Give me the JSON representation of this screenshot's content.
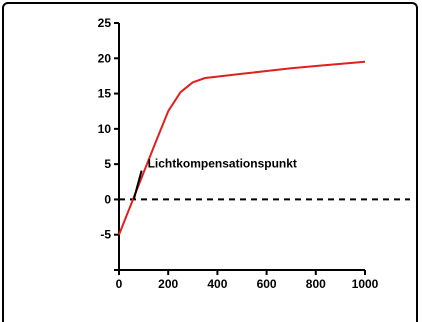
{
  "chart_data": {
    "type": "line",
    "title": "",
    "xlabel": "",
    "ylabel": "",
    "xlim": [
      0,
      1000
    ],
    "ylim": [
      -10,
      25
    ],
    "x_ticks": [
      0,
      200,
      400,
      600,
      800,
      1000
    ],
    "y_ticks": [
      -5,
      0,
      5,
      10,
      15,
      20,
      25
    ],
    "x_tick_labels": [
      "0",
      "200",
      "400",
      "600",
      "800",
      "1000"
    ],
    "y_tick_labels": [
      "-5",
      "0",
      "5",
      "10",
      "15",
      "20",
      "25"
    ],
    "series": [
      {
        "color": "#e02020",
        "x": [
          0,
          50,
          100,
          150,
          200,
          250,
          300,
          350,
          400,
          500,
          600,
          700,
          800,
          900,
          1000
        ],
        "y": [
          -5,
          -0.6,
          3.8,
          8.2,
          12.5,
          15.2,
          16.6,
          17.2,
          17.4,
          17.8,
          18.2,
          18.6,
          18.9,
          19.2,
          19.5
        ]
      }
    ],
    "reference_line": {
      "y": 0,
      "style": "dashed",
      "color": "#000000"
    },
    "annotation": {
      "text": "Lichtkompensationspunkt",
      "point": [
        60,
        0
      ],
      "text_anchor_data": [
        230,
        4.5
      ]
    },
    "grid": false,
    "legend": "none"
  }
}
